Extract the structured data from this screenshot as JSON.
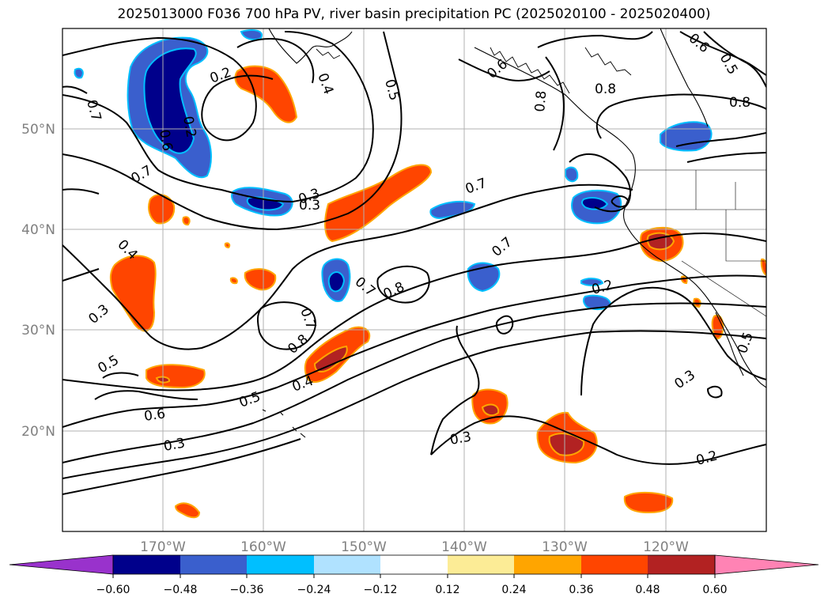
{
  "title": "2025013000 F036 700 hPa PV, river basin precipitation PC (2025020100 - 2025020400)",
  "lat_labels": [
    "50°N",
    "40°N",
    "30°N",
    "20°N"
  ],
  "lon_labels": [
    "170°W",
    "160°W",
    "150°W",
    "140°W",
    "130°W",
    "120°W"
  ],
  "contour_labels": [
    "0.2",
    "0.3",
    "0.2",
    "0.4",
    "0.5",
    "0.6",
    "0.7",
    "0.6",
    "0.5",
    "0.8",
    "0.8",
    "0.7",
    "0.8",
    "0.6",
    "0.7",
    "0.3",
    "0.7",
    "0.4",
    "0.3",
    "0.5",
    "0.7",
    "0.7",
    "0.8",
    "0.8",
    "0.4",
    "0.5",
    "0.6",
    "0.3",
    "0.3",
    "0.2",
    "0.2",
    "0.3",
    "0.5"
  ],
  "colorbar": {
    "tick_labels": [
      "−0.60",
      "−0.48",
      "−0.36",
      "−0.24",
      "−0.12",
      "0.12",
      "0.24",
      "0.36",
      "0.48",
      "0.60"
    ],
    "colors": [
      "#9932cc",
      "#00008b",
      "#3a5fcd",
      "#00bfff",
      "#b0e2ff",
      "#ffffff",
      "#fcec96",
      "#ffa500",
      "#ff4500",
      "#b22222",
      "#ff83b4"
    ]
  },
  "shading_colors": {
    "neg_strong": "#00008b",
    "neg_mid": "#3a5fcd",
    "neg_light": "#00bfff",
    "pos_light": "#ffa500",
    "pos_mid": "#ff4500",
    "pos_strong": "#b22222",
    "pos_extreme": "#ff83b4"
  }
}
